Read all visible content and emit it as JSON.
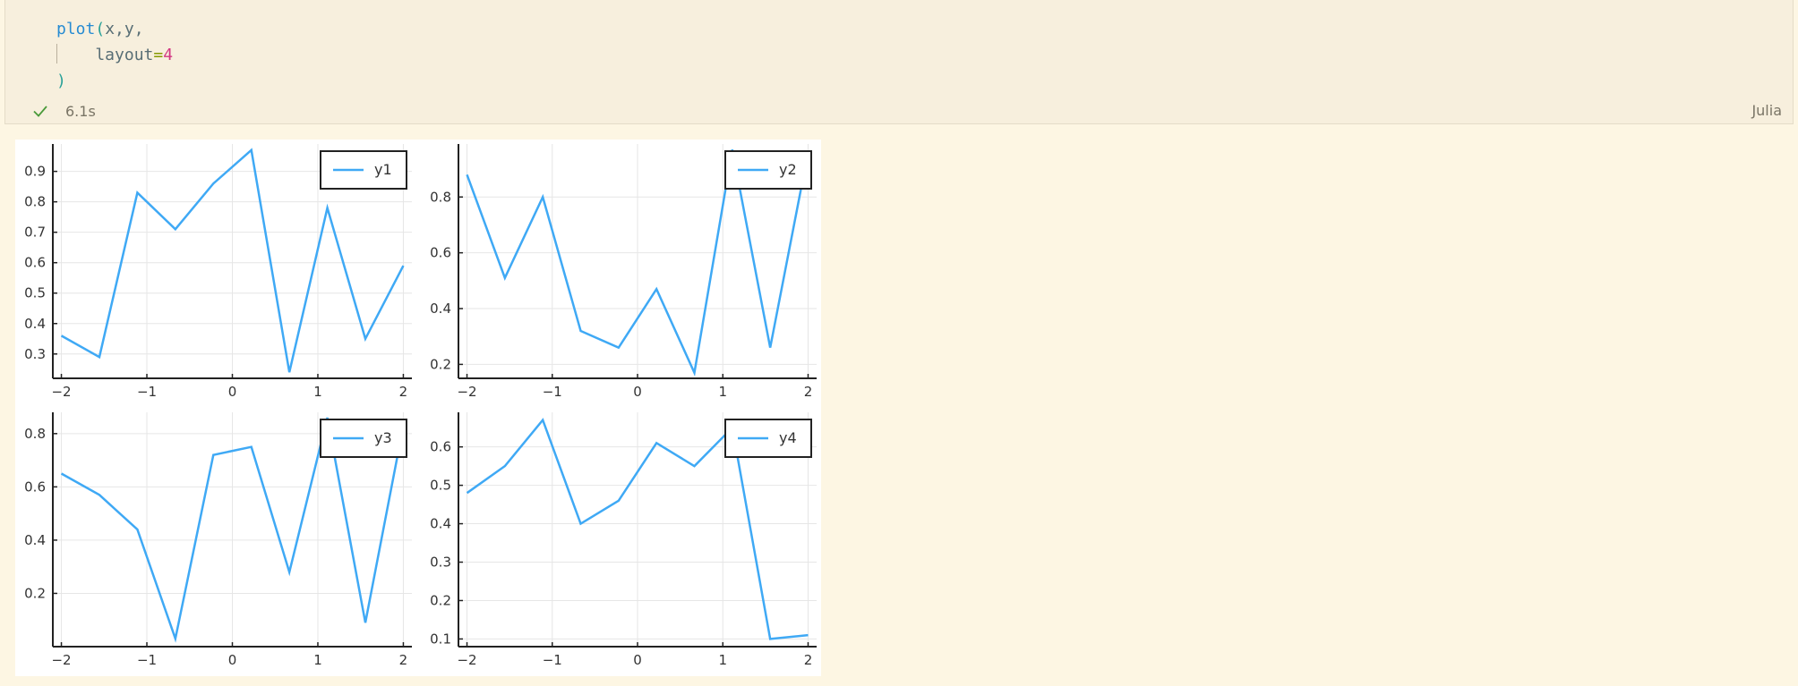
{
  "cell": {
    "code_lines": [
      [
        {
          "t": "plot",
          "c": "fn"
        },
        {
          "t": "(",
          "c": "paren"
        },
        {
          "t": "x,y,",
          "c": "ident"
        }
      ],
      [
        {
          "t": "    layout",
          "c": "ident"
        },
        {
          "t": "=",
          "c": "op"
        },
        {
          "t": "4",
          "c": "num"
        }
      ],
      [
        {
          "t": ")",
          "c": "paren"
        }
      ]
    ],
    "status_time": "6.1s",
    "language": "Julia",
    "status_icon": "check-icon"
  },
  "colors": {
    "series": "#3fa9f5",
    "axis": "#222222",
    "grid": "#e6e6e6"
  },
  "chart_data": [
    {
      "type": "line",
      "x": [
        -2,
        -1.5556,
        -1.1111,
        -0.6667,
        -0.2222,
        0.2222,
        0.6667,
        1.1111,
        1.5556,
        2
      ],
      "series": [
        {
          "name": "y1",
          "values": [
            0.36,
            0.29,
            0.83,
            0.71,
            0.86,
            0.97,
            0.24,
            0.78,
            0.35,
            0.59
          ]
        }
      ],
      "xticks": [
        -2,
        -1,
        0,
        1,
        2
      ],
      "xtick_labels": [
        "−2",
        "−1",
        "0",
        "1",
        "2"
      ],
      "yticks": [
        0.3,
        0.4,
        0.5,
        0.6,
        0.7,
        0.8,
        0.9
      ],
      "ytick_labels": [
        "0.3",
        "0.4",
        "0.5",
        "0.6",
        "0.7",
        "0.8",
        "0.9"
      ],
      "xlim": [
        -2.1,
        2.1
      ],
      "ylim": [
        0.22,
        0.99
      ],
      "grid": true,
      "legend": "top-right"
    },
    {
      "type": "line",
      "x": [
        -2,
        -1.5556,
        -1.1111,
        -0.6667,
        -0.2222,
        0.2222,
        0.6667,
        1.1111,
        1.5556,
        2
      ],
      "series": [
        {
          "name": "y2",
          "values": [
            0.88,
            0.51,
            0.8,
            0.32,
            0.26,
            0.47,
            0.17,
            0.97,
            0.26,
            0.96
          ]
        }
      ],
      "xticks": [
        -2,
        -1,
        0,
        1,
        2
      ],
      "xtick_labels": [
        "−2",
        "−1",
        "0",
        "1",
        "2"
      ],
      "yticks": [
        0.2,
        0.4,
        0.6,
        0.8
      ],
      "ytick_labels": [
        "0.2",
        "0.4",
        "0.6",
        "0.8"
      ],
      "xlim": [
        -2.1,
        2.1
      ],
      "ylim": [
        0.15,
        0.99
      ],
      "grid": true,
      "legend": "top-right"
    },
    {
      "type": "line",
      "x": [
        -2,
        -1.5556,
        -1.1111,
        -0.6667,
        -0.2222,
        0.2222,
        0.6667,
        1.1111,
        1.5556,
        2
      ],
      "series": [
        {
          "name": "y3",
          "values": [
            0.65,
            0.57,
            0.44,
            0.03,
            0.72,
            0.75,
            0.28,
            0.86,
            0.09,
            0.83
          ]
        }
      ],
      "xticks": [
        -2,
        -1,
        0,
        1,
        2
      ],
      "xtick_labels": [
        "−2",
        "−1",
        "0",
        "1",
        "2"
      ],
      "yticks": [
        0.2,
        0.4,
        0.6,
        0.8
      ],
      "ytick_labels": [
        "0.2",
        "0.4",
        "0.6",
        "0.8"
      ],
      "xlim": [
        -2.1,
        2.1
      ],
      "ylim": [
        0.0,
        0.88
      ],
      "grid": true,
      "legend": "top-right"
    },
    {
      "type": "line",
      "x": [
        -2,
        -1.5556,
        -1.1111,
        -0.6667,
        -0.2222,
        0.2222,
        0.6667,
        1.1111,
        1.5556,
        2
      ],
      "series": [
        {
          "name": "y4",
          "values": [
            0.48,
            0.55,
            0.67,
            0.4,
            0.46,
            0.61,
            0.55,
            0.65,
            0.1,
            0.11
          ]
        }
      ],
      "xticks": [
        -2,
        -1,
        0,
        1,
        2
      ],
      "xtick_labels": [
        "−2",
        "−1",
        "0",
        "1",
        "2"
      ],
      "yticks": [
        0.1,
        0.2,
        0.3,
        0.4,
        0.5,
        0.6
      ],
      "ytick_labels": [
        "0.1",
        "0.2",
        "0.3",
        "0.4",
        "0.5",
        "0.6"
      ],
      "xlim": [
        -2.1,
        2.1
      ],
      "ylim": [
        0.08,
        0.69
      ],
      "grid": true,
      "legend": "top-right"
    }
  ]
}
